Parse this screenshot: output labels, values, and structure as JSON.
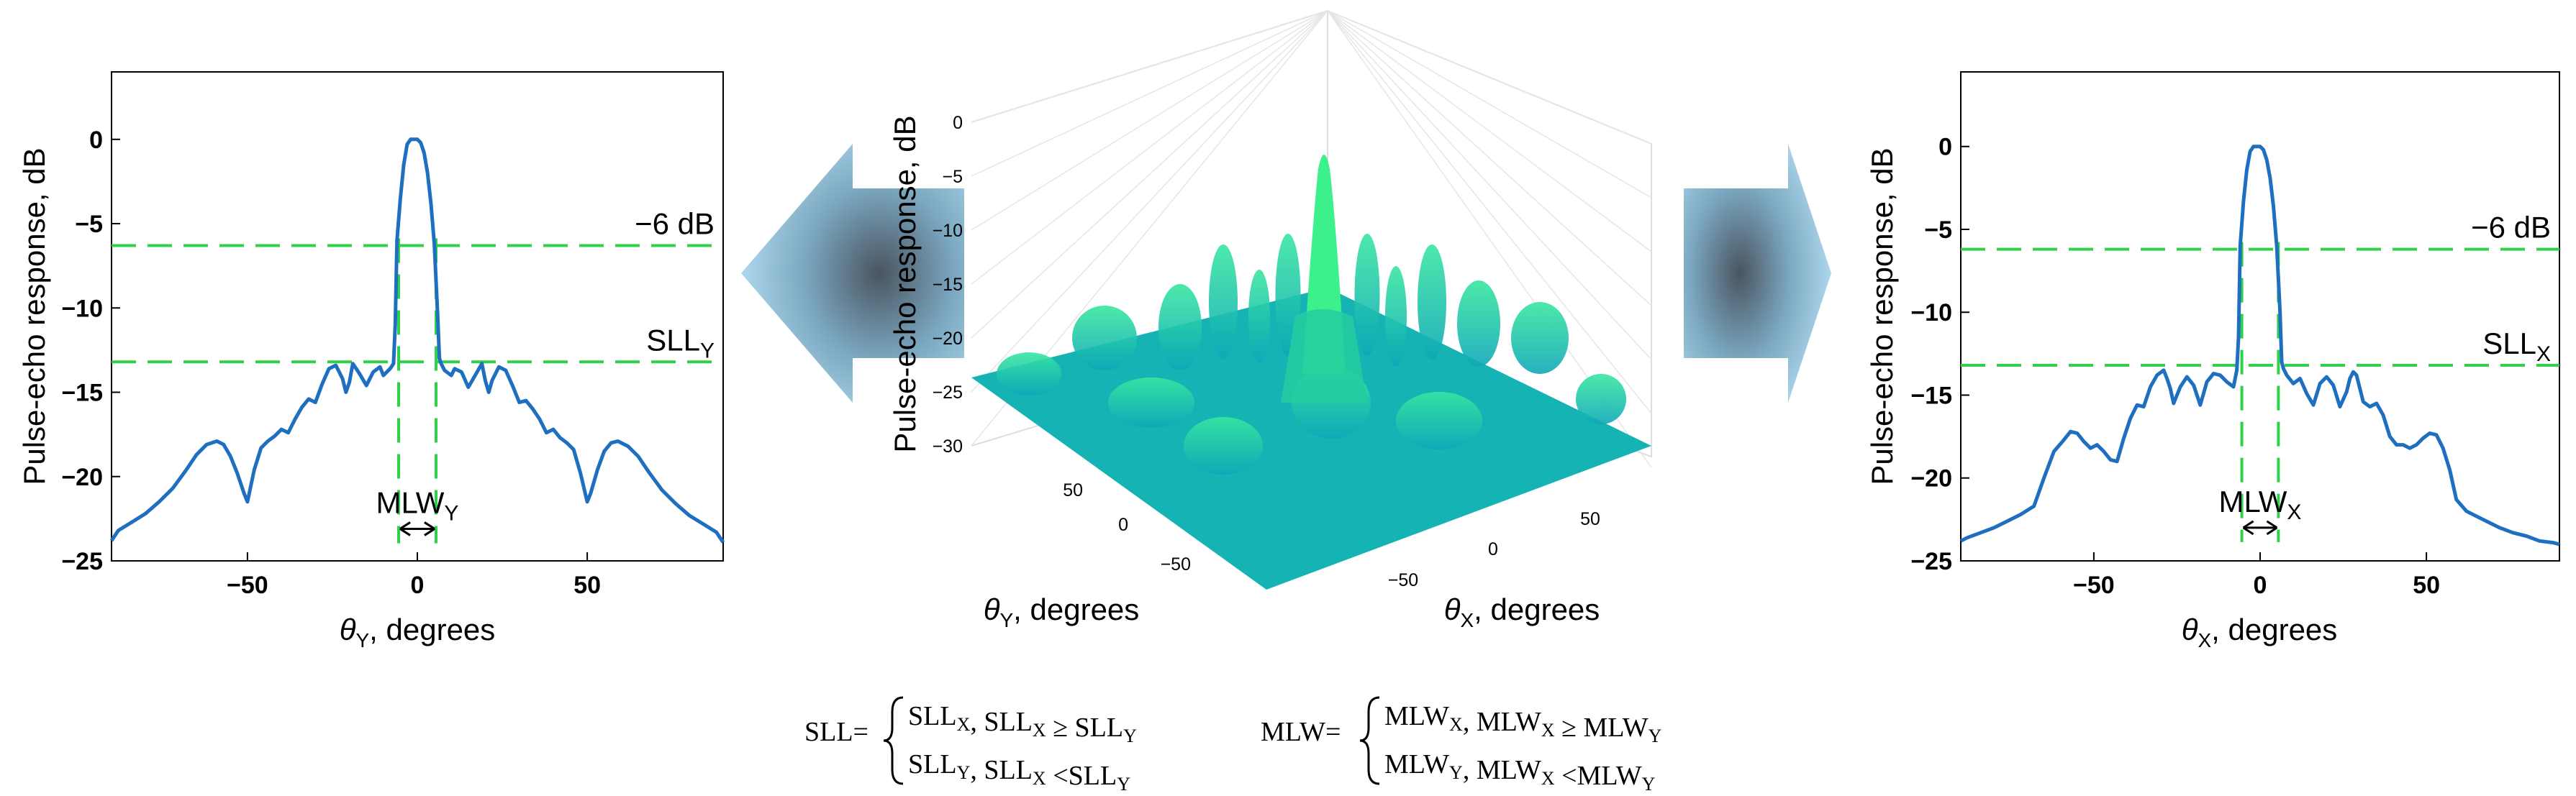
{
  "chart_data": [
    {
      "id": "left",
      "type": "line",
      "xlabel": {
        "symbol": "θ",
        "sub": "Y",
        "rest": ", degrees"
      },
      "ylabel": "Pulse-echo response, dB",
      "xlim": [
        -90,
        90
      ],
      "ylim": [
        -25,
        4
      ],
      "xticks": [
        {
          "v": -50,
          "label": "−50"
        },
        {
          "v": 0,
          "label": "0"
        },
        {
          "v": 50,
          "label": "50"
        }
      ],
      "yticks": [
        {
          "v": 0,
          "label": "0"
        },
        {
          "v": -5,
          "label": "−5"
        },
        {
          "v": -10,
          "label": "−10"
        },
        {
          "v": -15,
          "label": "−15"
        },
        {
          "v": -20,
          "label": "−20"
        },
        {
          "v": -25,
          "label": "−25"
        }
      ],
      "series_color": "#1f6fc0",
      "marker_color": "#2fd04a",
      "series": [
        {
          "x": [
            -90,
            -88,
            -84,
            -80,
            -76,
            -72,
            -68,
            -65,
            -62,
            -59,
            -57,
            -55,
            -53,
            -51,
            -50,
            -48,
            -46,
            -44,
            -42,
            -40,
            -38,
            -36,
            -34,
            -32,
            -30,
            -28,
            -26,
            -24,
            -22,
            -21,
            -20,
            -19,
            -17,
            -15,
            -13,
            -11,
            -10,
            -8,
            -7,
            -6.5,
            -6,
            -5,
            -4,
            -3,
            -2,
            -1,
            0,
            1,
            2,
            3,
            4,
            5,
            6,
            6.5,
            7,
            8,
            10,
            11,
            13,
            15,
            17,
            19,
            20,
            21,
            22,
            24,
            26,
            28,
            30,
            32,
            34,
            36,
            38,
            40,
            42,
            44,
            46,
            48,
            50,
            51,
            53,
            55,
            57,
            59,
            62,
            65,
            68,
            72,
            76,
            80,
            84,
            88,
            90
          ],
          "y": [
            -23.8,
            -23.2,
            -22.7,
            -22.2,
            -21.5,
            -20.7,
            -19.6,
            -18.7,
            -18.1,
            -17.9,
            -18.1,
            -18.8,
            -19.8,
            -21.0,
            -21.5,
            -19.6,
            -18.3,
            -17.9,
            -17.6,
            -17.2,
            -17.4,
            -16.6,
            -15.9,
            -15.4,
            -15.6,
            -14.5,
            -13.6,
            -13.4,
            -14.2,
            -15.0,
            -14.4,
            -13.3,
            -13.9,
            -14.6,
            -13.8,
            -13.5,
            -14.0,
            -13.6,
            -13.3,
            -11.0,
            -6.0,
            -3.5,
            -1.5,
            -0.3,
            0,
            0,
            0,
            -0.2,
            -0.8,
            -2.0,
            -3.8,
            -6.2,
            -10.5,
            -13.0,
            -13.3,
            -13.7,
            -14.0,
            -13.6,
            -13.8,
            -14.7,
            -14.0,
            -13.3,
            -14.3,
            -15.0,
            -14.3,
            -13.5,
            -13.7,
            -14.6,
            -15.6,
            -15.5,
            -16.0,
            -16.6,
            -17.4,
            -17.2,
            -17.7,
            -18.0,
            -18.4,
            -19.8,
            -21.5,
            -21.0,
            -19.6,
            -18.5,
            -18.0,
            -17.9,
            -18.2,
            -18.8,
            -19.7,
            -20.8,
            -21.6,
            -22.3,
            -22.8,
            -23.3,
            -23.9
          ]
        }
      ],
      "hlines": [
        {
          "y": -6.3,
          "label": "−6 dB",
          "label_sub": ""
        },
        {
          "y": -13.2,
          "label": "SLL",
          "label_sub": "Y"
        }
      ],
      "vlines": [
        -5.5,
        5.5
      ],
      "mlw_label": {
        "main": "MLW",
        "sub": "Y"
      },
      "mlw_arrow_y": -23.1
    },
    {
      "id": "right",
      "type": "line",
      "xlabel": {
        "symbol": "θ",
        "sub": "X",
        "rest": ", degrees"
      },
      "ylabel": "Pulse-echo response, dB",
      "xlim": [
        -90,
        90
      ],
      "ylim": [
        -25,
        4.5
      ],
      "xticks": [
        {
          "v": -50,
          "label": "−50"
        },
        {
          "v": 0,
          "label": "0"
        },
        {
          "v": 50,
          "label": "50"
        }
      ],
      "yticks": [
        {
          "v": 0,
          "label": "0"
        },
        {
          "v": -5,
          "label": "−5"
        },
        {
          "v": -10,
          "label": "−10"
        },
        {
          "v": -15,
          "label": "−15"
        },
        {
          "v": -20,
          "label": "−20"
        },
        {
          "v": -25,
          "label": "−25"
        }
      ],
      "series_color": "#1f6fc0",
      "marker_color": "#2fd04a",
      "series": [
        {
          "x": [
            -90,
            -88,
            -84,
            -80,
            -76,
            -72,
            -68,
            -65,
            -62,
            -59,
            -57,
            -55,
            -53,
            -51,
            -49,
            -47,
            -45,
            -43,
            -41,
            -39,
            -37,
            -35,
            -33,
            -31,
            -29,
            -28,
            -27,
            -26,
            -24,
            -22,
            -20,
            -18,
            -16,
            -14,
            -12,
            -10,
            -8,
            -7,
            -6.5,
            -6,
            -5,
            -4,
            -3,
            -2,
            -1,
            0,
            1,
            2,
            3,
            4,
            5,
            6,
            6.5,
            7,
            8,
            10,
            12,
            14,
            16,
            18,
            20,
            22,
            24,
            26,
            27,
            28,
            29,
            31,
            33,
            35,
            37,
            39,
            41,
            43,
            45,
            47,
            49,
            51,
            53,
            55,
            57,
            59,
            62,
            65,
            68,
            72,
            76,
            80,
            84,
            88,
            90
          ],
          "y": [
            -23.8,
            -23.6,
            -23.3,
            -23.0,
            -22.6,
            -22.2,
            -21.7,
            -20.0,
            -18.4,
            -17.7,
            -17.2,
            -17.3,
            -17.8,
            -18.2,
            -18.0,
            -18.4,
            -18.9,
            -19.0,
            -17.6,
            -16.4,
            -15.6,
            -15.7,
            -14.5,
            -13.8,
            -13.5,
            -14.0,
            -14.6,
            -15.5,
            -14.5,
            -13.9,
            -14.4,
            -15.6,
            -14.2,
            -13.7,
            -13.8,
            -14.2,
            -14.5,
            -13.5,
            -11.5,
            -6.0,
            -3.3,
            -1.4,
            -0.3,
            0,
            0,
            0,
            -0.2,
            -0.8,
            -1.9,
            -3.6,
            -6.0,
            -10.0,
            -13.0,
            -13.4,
            -13.8,
            -14.3,
            -14.0,
            -14.9,
            -15.6,
            -14.3,
            -13.9,
            -14.4,
            -15.7,
            -14.8,
            -14.0,
            -13.6,
            -13.8,
            -15.4,
            -15.7,
            -15.5,
            -16.2,
            -17.5,
            -18.0,
            -18.0,
            -18.2,
            -18.0,
            -17.6,
            -17.3,
            -17.4,
            -18.2,
            -19.5,
            -21.3,
            -22.0,
            -22.3,
            -22.6,
            -23.0,
            -23.3,
            -23.5,
            -23.8,
            -23.9,
            -24.0
          ]
        }
      ],
      "hlines": [
        {
          "y": -6.2,
          "label": "−6 dB",
          "label_sub": ""
        },
        {
          "y": -13.2,
          "label": "SLL",
          "label_sub": "X"
        }
      ],
      "vlines": [
        -5.5,
        5.5
      ],
      "mlw_label": {
        "main": "MLW",
        "sub": "X"
      },
      "mlw_arrow_y": -23.0
    },
    {
      "id": "surface3d",
      "type": "surface",
      "zlabel": "Pulse-echo response, dB",
      "xlabel": {
        "symbol": "θ",
        "sub": "X",
        "rest": ", degrees"
      },
      "ylabel": {
        "symbol": "θ",
        "sub": "Y",
        "rest": ", degrees"
      },
      "zticks": [
        {
          "v": 0,
          "label": "0"
        },
        {
          "v": -5,
          "label": "−5"
        },
        {
          "v": -10,
          "label": "−10"
        },
        {
          "v": -15,
          "label": "−15"
        },
        {
          "v": -20,
          "label": "−20"
        },
        {
          "v": -25,
          "label": "−25"
        },
        {
          "v": -30,
          "label": "−30"
        }
      ],
      "yticks": [
        {
          "v": 50,
          "label": "50"
        },
        {
          "v": 0,
          "label": "0"
        },
        {
          "v": -50,
          "label": "−50"
        }
      ],
      "xticks": [
        {
          "v": -50,
          "label": "−50"
        },
        {
          "v": 0,
          "label": "0"
        },
        {
          "v": 50,
          "label": "50"
        }
      ],
      "zlim": [
        -30,
        0
      ],
      "colors": {
        "low": "#0fa8b8",
        "high": "#3cf08c"
      }
    }
  ],
  "formula": {
    "sll": {
      "lhs": "SLL=",
      "case1": [
        [
          "SLL",
          "X"
        ],
        [
          ", SLL",
          "X"
        ],
        [
          " ≥ SLL",
          "Y"
        ]
      ],
      "case2": [
        [
          "SLL",
          "Y"
        ],
        [
          ", SLL",
          "X"
        ],
        [
          " <SLL",
          "Y"
        ]
      ]
    },
    "mlw": {
      "lhs": "MLW=",
      "case1": [
        [
          "MLW",
          "X"
        ],
        [
          ", MLW",
          "X"
        ],
        [
          " ≥ MLW",
          "Y"
        ]
      ],
      "case2": [
        [
          "MLW",
          "Y"
        ],
        [
          ", MLW",
          "X"
        ],
        [
          " <MLW",
          "Y"
        ]
      ]
    }
  }
}
